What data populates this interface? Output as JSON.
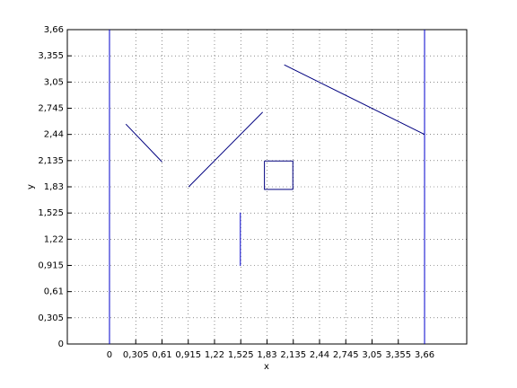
{
  "chart_data": {
    "type": "line",
    "xlabel": "x",
    "ylabel": "y",
    "xlim": [
      -0.49,
      4.15
    ],
    "ylim": [
      0,
      3.66
    ],
    "xticks": [
      0,
      {
        "value": 0.305,
        "label": "0,305"
      },
      {
        "value": 0.61,
        "label": "0,61"
      },
      {
        "value": 0.915,
        "label": "0,915"
      },
      {
        "value": 1.22,
        "label": "1,22"
      },
      {
        "value": 1.525,
        "label": "1,525"
      },
      {
        "value": 1.83,
        "label": "1,83"
      },
      {
        "value": 2.135,
        "label": "2,135"
      },
      {
        "value": 2.44,
        "label": "2,44"
      },
      {
        "value": 2.745,
        "label": "2,745"
      },
      {
        "value": 3.05,
        "label": "3,05"
      },
      {
        "value": 3.355,
        "label": "3,355"
      },
      {
        "value": 3.66,
        "label": "3,66"
      }
    ],
    "yticks": [
      0,
      {
        "value": 0.305,
        "label": "0,305"
      },
      {
        "value": 0.61,
        "label": "0,61"
      },
      {
        "value": 0.915,
        "label": "0,915"
      },
      {
        "value": 1.22,
        "label": "1,22"
      },
      {
        "value": 1.525,
        "label": "1,525"
      },
      {
        "value": 1.83,
        "label": "1,83"
      },
      {
        "value": 2.135,
        "label": "2,135"
      },
      {
        "value": 2.44,
        "label": "2,44"
      },
      {
        "value": 2.745,
        "label": "2,745"
      },
      {
        "value": 3.05,
        "label": "3,05"
      },
      {
        "value": 3.355,
        "label": "3,355"
      },
      {
        "value": 3.66,
        "label": "3,66"
      }
    ],
    "grid": true,
    "series": [
      {
        "color": "#0000cc",
        "x": [
          0,
          0
        ],
        "values": [
          0,
          3.66
        ]
      },
      {
        "color": "#0000cc",
        "x": [
          3.66,
          3.66
        ],
        "values": [
          0,
          3.66
        ]
      },
      {
        "color": "#00007f",
        "x": [
          0.19,
          0.61
        ],
        "values": [
          2.56,
          2.12
        ]
      },
      {
        "color": "#00007f",
        "x": [
          0.92,
          1.78
        ],
        "values": [
          1.83,
          2.7
        ]
      },
      {
        "color": "#00007f",
        "x": [
          2.03,
          3.66
        ],
        "values": [
          3.25,
          2.44
        ]
      },
      {
        "color": "#0000cc",
        "x": [
          1.52,
          1.52
        ],
        "values": [
          1.53,
          0.91
        ]
      },
      {
        "color": "#00007f",
        "x": [
          1.8,
          2.13,
          2.13,
          1.8,
          1.8
        ],
        "values": [
          2.13,
          2.13,
          1.8,
          1.8,
          2.13
        ]
      }
    ]
  }
}
